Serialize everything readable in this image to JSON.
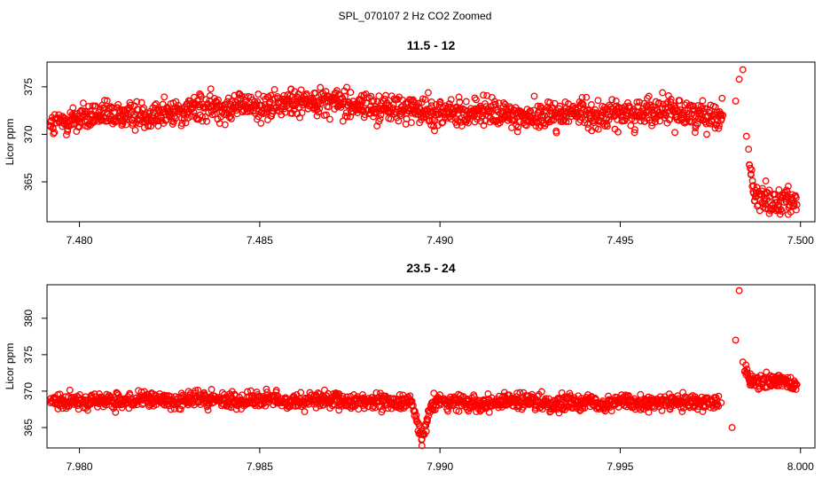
{
  "figure_title": "SPL_070107  2 Hz CO2 Zoomed",
  "point_color": "#ff0000",
  "chart_data": [
    {
      "type": "scatter",
      "title": "11.5 - 12",
      "xlabel": "",
      "ylabel": "Licor ppm",
      "xlim": [
        7.4791,
        7.5004
      ],
      "ylim": [
        360.8,
        377.6
      ],
      "xticks": [
        7.48,
        7.485,
        7.49,
        7.495,
        7.5
      ],
      "xtick_labels": [
        "7.480",
        "7.485",
        "7.490",
        "7.495",
        "7.500"
      ],
      "yticks": [
        365,
        370,
        375
      ],
      "ytick_labels": [
        "365",
        "370",
        "375"
      ],
      "grid": false,
      "legend": "none",
      "marker": "open-circle",
      "series": [
        {
          "x": [
            7.4792,
            7.4798,
            7.4805,
            7.4812,
            7.4818,
            7.4825,
            7.4831,
            7.4838,
            7.4845,
            7.4852,
            7.4858,
            7.4865,
            7.4872,
            7.4878,
            7.4885,
            7.4892,
            7.4898,
            7.4905,
            7.4912,
            7.4918,
            7.4925,
            7.4932,
            7.4938,
            7.4945,
            7.4952,
            7.4958,
            7.4965,
            7.4972,
            7.4978,
            7.4982,
            7.4983,
            7.4984,
            7.4985,
            7.4987,
            7.499,
            7.4993,
            7.4996,
            7.4999
          ],
          "y": [
            370.8,
            371.6,
            371.9,
            372.0,
            372.1,
            372.3,
            372.6,
            372.9,
            373.1,
            372.8,
            373.3,
            373.6,
            373.4,
            373.0,
            372.7,
            372.6,
            372.3,
            372.2,
            372.4,
            372.0,
            371.9,
            372.1,
            372.3,
            372.0,
            372.2,
            372.4,
            372.3,
            372.1,
            372.0,
            373.5,
            375.8,
            376.8,
            369.8,
            363.8,
            363.2,
            362.8,
            363.4,
            362.6
          ]
        }
      ]
    },
    {
      "type": "scatter",
      "title": "23.5 - 24",
      "xlabel": "",
      "ylabel": "Licor ppm",
      "xlim": [
        7.9791,
        8.0004
      ],
      "ylim": [
        362.2,
        384.6
      ],
      "xticks": [
        7.98,
        7.985,
        7.99,
        7.995,
        8.0
      ],
      "xtick_labels": [
        "7.980",
        "7.985",
        "7.990",
        "7.995",
        "8.000"
      ],
      "yticks": [
        365,
        370,
        375,
        380
      ],
      "ytick_labels": [
        "365",
        "370",
        "375",
        "380"
      ],
      "grid": false,
      "legend": "none",
      "marker": "open-circle",
      "series": [
        {
          "x": [
            7.9792,
            7.9798,
            7.9805,
            7.9812,
            7.9818,
            7.9825,
            7.9832,
            7.9838,
            7.9845,
            7.9852,
            7.9858,
            7.9865,
            7.9872,
            7.9878,
            7.9885,
            7.9892,
            7.9895,
            7.9898,
            7.9905,
            7.9912,
            7.9918,
            7.9925,
            7.9932,
            7.9938,
            7.9945,
            7.9952,
            7.9958,
            7.9965,
            7.9972,
            7.9978,
            7.9981,
            7.9982,
            7.9983,
            7.9984,
            7.9985,
            7.9986,
            7.9988,
            7.9991,
            7.9994,
            7.9997,
            7.9999
          ],
          "y": [
            368.4,
            368.6,
            368.7,
            368.5,
            368.8,
            368.6,
            368.9,
            368.7,
            368.8,
            368.9,
            368.6,
            368.8,
            368.5,
            368.7,
            368.4,
            368.6,
            363.4,
            368.5,
            368.6,
            368.3,
            368.7,
            368.5,
            368.2,
            368.6,
            368.4,
            368.7,
            368.3,
            368.5,
            368.2,
            368.4,
            365.0,
            377.0,
            383.8,
            374.0,
            372.5,
            371.2,
            371.4,
            371.3,
            371.5,
            371.1,
            370.9
          ]
        }
      ]
    }
  ]
}
